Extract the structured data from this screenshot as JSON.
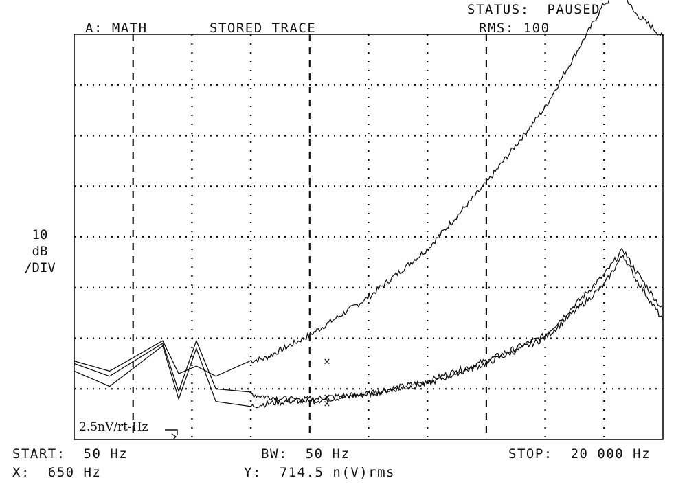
{
  "header": {
    "channel": "A: MATH",
    "trace_mode": "STORED TRACE",
    "status": "STATUS:  PAUSED",
    "rms": "RMS: 100"
  },
  "scale": {
    "value": "10",
    "unit": "dB",
    "per": "/DIV"
  },
  "annotation": "2.5nV/rt-Hz",
  "footer": {
    "start": "START:  50 Hz",
    "bw": "BW:  50 Hz",
    "stop": "STOP:  20 000 Hz",
    "x_marker": "X:  650 Hz",
    "y_marker": "Y:  714.5 n(V)rms"
  },
  "chart_data": {
    "type": "line",
    "xlabel": "",
    "ylabel": "",
    "x_unit_note": "frequency (Hz, linear)",
    "xlim": [
      50,
      20000
    ],
    "ylim_divisions": [
      0,
      8
    ],
    "grid": true,
    "marker_x": 650,
    "series": [
      {
        "x": [
          50,
          1250,
          3050,
          3590,
          4190,
          4850,
          6000,
          6500,
          8000,
          10000,
          12000,
          14000,
          16000,
          18000,
          18650,
          19000,
          20000
        ],
        "values": [
          1.55,
          1.35,
          1.95,
          1.3,
          1.45,
          1.25,
          1.55,
          1.6,
          2.05,
          2.8,
          3.75,
          5.05,
          6.55,
          8.6,
          8.85,
          8.45,
          7.95
        ]
      },
      {
        "x": [
          50,
          1250,
          3050,
          3590,
          4190,
          4850,
          6000,
          6500,
          8000,
          10000,
          12000,
          14000,
          16000,
          18000,
          18650,
          19000,
          20000
        ],
        "values": [
          1.5,
          1.25,
          1.9,
          0.95,
          1.95,
          1.0,
          0.9,
          0.85,
          0.75,
          0.9,
          1.15,
          1.55,
          2.05,
          3.25,
          3.75,
          3.4,
          2.55
        ]
      },
      {
        "x": [
          50,
          1250,
          3050,
          3590,
          4190,
          4850,
          6000,
          6500,
          8000,
          10000,
          12000,
          14000,
          16000,
          18000,
          18650,
          19000,
          20000
        ],
        "values": [
          1.35,
          1.05,
          1.85,
          0.8,
          1.8,
          0.75,
          0.65,
          0.7,
          0.8,
          0.9,
          1.1,
          1.5,
          2.0,
          3.05,
          3.65,
          3.25,
          2.35
        ]
      }
    ]
  }
}
